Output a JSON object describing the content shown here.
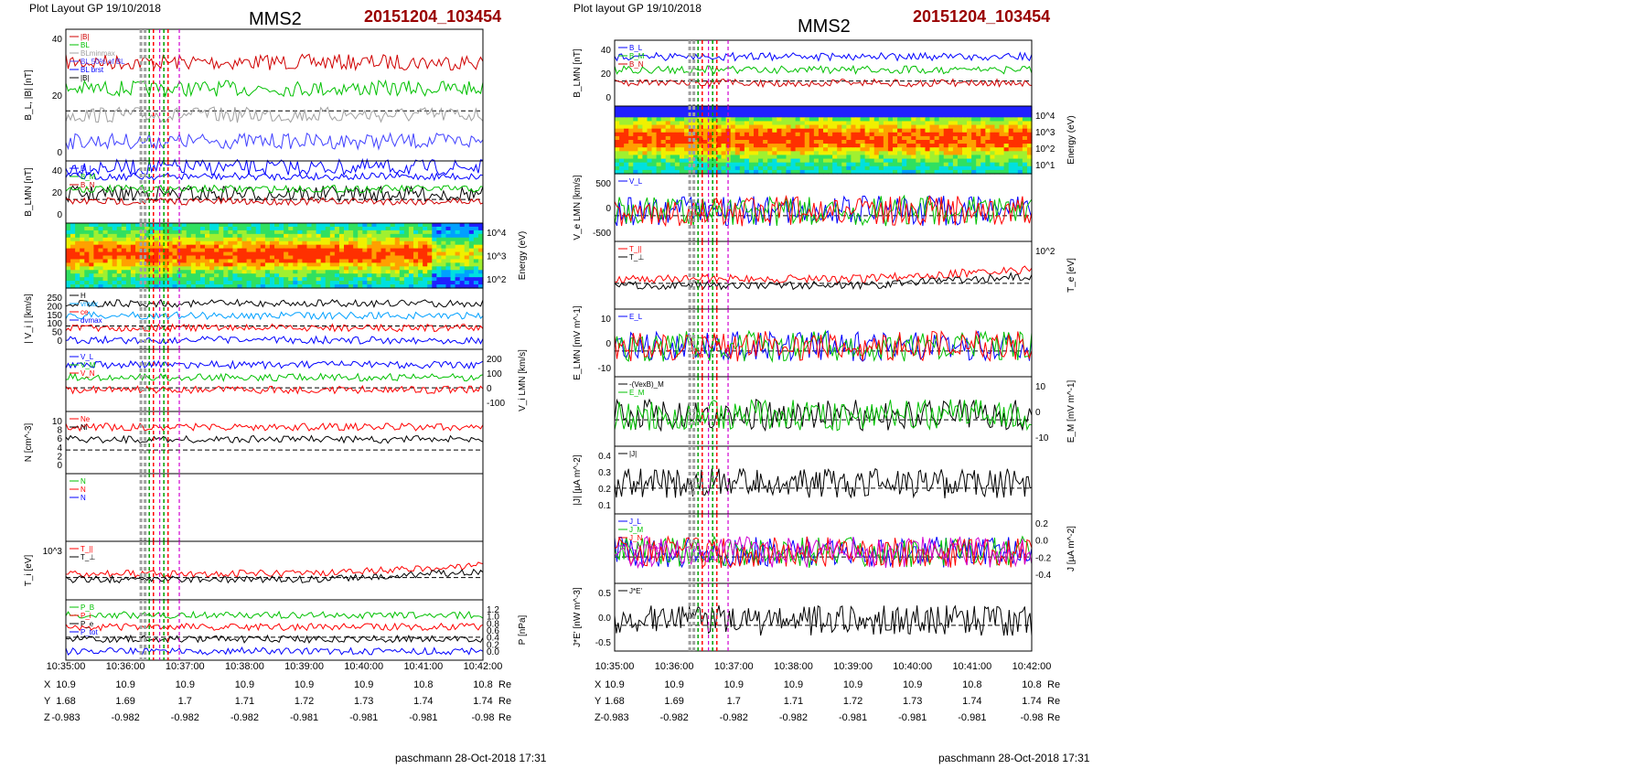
{
  "chart_data": [
    {
      "type": "line",
      "header": "Plot Layout GP 19/10/2018",
      "title": "MMS2",
      "event": "20151204_103454",
      "footer": "paschmann 28-Oct-2018 17:31",
      "x_ticks": [
        "10:35:00",
        "10:36:00",
        "10:37:00",
        "10:38:00",
        "10:39:00",
        "10:40:00",
        "10:41:00",
        "10:42:00"
      ],
      "orbit": {
        "X": [
          "10.9",
          "10.9",
          "10.9",
          "10.9",
          "10.9",
          "10.9",
          "10.8",
          "10.8"
        ],
        "Y": [
          "1.68",
          "1.69",
          "1.7",
          "1.71",
          "1.72",
          "1.73",
          "1.74",
          "1.74"
        ],
        "Z": [
          "-0.983",
          "-0.982",
          "-0.982",
          "-0.982",
          "-0.981",
          "-0.981",
          "-0.981",
          "-0.98"
        ],
        "unit": "Re"
      },
      "panels": [
        {
          "id": "bl",
          "ylabel": "B_L, |B| [nT]",
          "yticks_left": [
            "40",
            "20",
            "0"
          ],
          "legend": [
            "|B|",
            "BL",
            "BLminmax",
            "BL 50% of BL",
            "BL brst",
            "|B|"
          ],
          "colors": [
            "#d00000",
            "#00c000",
            "#a0a0a0",
            "#4040ff",
            "#0000ff",
            "#000000"
          ]
        },
        {
          "id": "blmn",
          "ylabel": "B_LMN [nT]",
          "yticks_left": [
            "40",
            "20",
            "0"
          ],
          "legend": [
            "B_L",
            "B_M",
            "B_N"
          ],
          "colors": [
            "#0000ff",
            "#00c000",
            "#d00000"
          ]
        },
        {
          "id": "spec",
          "ylabel": "Energy (eV)",
          "yticks_right": [
            "10^4",
            "10^3",
            "10^2"
          ]
        },
        {
          "id": "vi",
          "ylabel": "| V_i | [km/s]",
          "yticks_left": [
            "250",
            "200",
            "150",
            "100",
            "50",
            "0"
          ],
          "legend": [
            "H",
            "vmax",
            "ce",
            "dvmax"
          ],
          "colors": [
            "#000000",
            "#00a0ff",
            "#ff0000",
            "#0000ff"
          ]
        },
        {
          "id": "vilmn",
          "ylabel": "V_i LMN [km/s]",
          "yticks_right": [
            "200",
            "100",
            "0",
            "-100"
          ],
          "legend": [
            "V_L",
            "V_M",
            "V_N"
          ],
          "colors": [
            "#0000ff",
            "#00c000",
            "#ff0000"
          ]
        },
        {
          "id": "n",
          "ylabel": "N [cm^-3]",
          "yticks_left": [
            "10",
            "8",
            "6",
            "4",
            "2",
            "0"
          ],
          "legend": [
            "Ne",
            "Ni"
          ],
          "colors": [
            "#ff0000",
            "#000000"
          ]
        },
        {
          "id": "nblank",
          "ylabel": "",
          "legend": [
            "N",
            "N",
            "N"
          ],
          "colors": [
            "#00c000",
            "#ff0000",
            "#0000ff"
          ]
        },
        {
          "id": "ti",
          "ylabel": "T_i [eV]",
          "yticks_left": [
            "10^3"
          ],
          "legend": [
            "T_||",
            "T_⊥"
          ],
          "colors": [
            "#ff0000",
            "#000000"
          ]
        },
        {
          "id": "p",
          "ylabel": "P [nPa]",
          "yticks_right": [
            "1.2",
            "1.0",
            "0.8",
            "0.6",
            "0.4",
            "0.2",
            "0.0"
          ],
          "legend": [
            "P_B",
            "P_i",
            "P_e",
            "P_tot"
          ],
          "colors": [
            "#00c000",
            "#ff0000",
            "#000000",
            "#0000ff"
          ]
        }
      ]
    },
    {
      "type": "line",
      "header": "Plot layout GP 19/10/2018",
      "title": "MMS2",
      "event": "20151204_103454",
      "footer": "paschmann 28-Oct-2018 17:31",
      "x_ticks": [
        "10:35:00",
        "10:36:00",
        "10:37:00",
        "10:38:00",
        "10:39:00",
        "10:40:00",
        "10:41:00",
        "10:42:00"
      ],
      "orbit": {
        "X": [
          "10.9",
          "10.9",
          "10.9",
          "10.9",
          "10.9",
          "10.9",
          "10.8",
          "10.8"
        ],
        "Y": [
          "1.68",
          "1.69",
          "1.7",
          "1.71",
          "1.72",
          "1.73",
          "1.74",
          "1.74"
        ],
        "Z": [
          "-0.983",
          "-0.982",
          "-0.982",
          "-0.982",
          "-0.981",
          "-0.981",
          "-0.981",
          "-0.98"
        ],
        "unit": "Re"
      },
      "panels": [
        {
          "id": "blmn",
          "ylabel": "B_LMN [nT]",
          "yticks_left": [
            "40",
            "20",
            "0"
          ],
          "legend": [
            "B_L",
            "B_M",
            "B_N"
          ],
          "colors": [
            "#0000ff",
            "#00c000",
            "#d00000"
          ]
        },
        {
          "id": "spec",
          "ylabel": "Energy (eV)",
          "yticks_right": [
            "10^4",
            "10^3",
            "10^2",
            "10^1"
          ]
        },
        {
          "id": "velmn",
          "ylabel": "V_e LMN [km/s]",
          "yticks_left": [
            "500",
            "0",
            "-500"
          ],
          "legend": [
            "V_L"
          ],
          "colors": [
            "#0000ff",
            "#00c000",
            "#ff0000"
          ]
        },
        {
          "id": "te",
          "ylabel": "T_e [eV]",
          "yticks_right": [
            "10^2"
          ],
          "legend": [
            "T_||",
            "T_⊥"
          ],
          "colors": [
            "#ff0000",
            "#000000"
          ]
        },
        {
          "id": "elmn",
          "ylabel": "E_LMN [mV m^-1]",
          "yticks_left": [
            "10",
            "0",
            "-10"
          ],
          "legend": [
            "E_L"
          ],
          "colors": [
            "#0000ff",
            "#00c000",
            "#ff0000"
          ]
        },
        {
          "id": "em",
          "ylabel": "E_M [mV m^-1]",
          "yticks_right": [
            "10",
            "0",
            "-10"
          ],
          "legend": [
            "-(VexB)_M",
            "E_M"
          ],
          "colors": [
            "#000000",
            "#00c000"
          ]
        },
        {
          "id": "j",
          "ylabel": "|J| [µA m^-2]",
          "yticks_left": [
            "0.4",
            "0.3",
            "0.2",
            "0.1"
          ],
          "legend": [
            "|J|"
          ],
          "colors": [
            "#000000"
          ]
        },
        {
          "id": "jlmn",
          "ylabel": "J [µA m^-2]",
          "yticks_right": [
            "0.2",
            "0.0",
            "-0.2",
            "-0.4"
          ],
          "legend": [
            "J_L",
            "J_M",
            "J_N",
            "J_L maxJ"
          ],
          "colors": [
            "#0000ff",
            "#00c000",
            "#ff0000",
            "#d000d0"
          ]
        },
        {
          "id": "je",
          "ylabel": "J*E' [nW m^-3]",
          "yticks_left": [
            "0.5",
            "0.0",
            "-0.5"
          ],
          "legend": [
            "J*E'"
          ],
          "colors": [
            "#000000"
          ]
        }
      ]
    }
  ]
}
